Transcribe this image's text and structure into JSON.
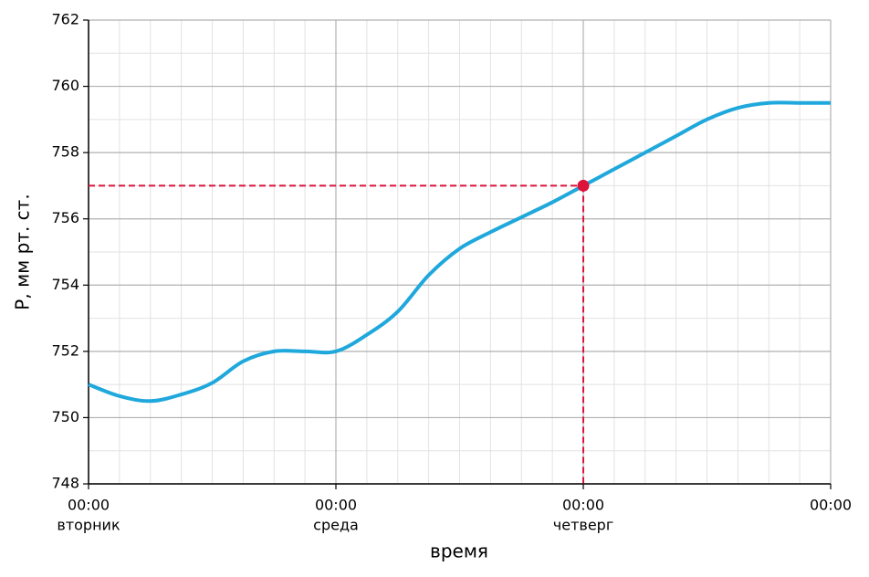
{
  "chart_data": {
    "type": "line",
    "xlabel": "время",
    "ylabel": "P, мм рт. ст.",
    "x": [
      0,
      3,
      6,
      9,
      12,
      15,
      18,
      21,
      24,
      27,
      30,
      33,
      36,
      39,
      42,
      45,
      48,
      51,
      54,
      57,
      60,
      63,
      66,
      69,
      72
    ],
    "series": [
      {
        "color": "#1fa8dc",
        "values": [
          751.0,
          750.65,
          750.5,
          750.7,
          751.05,
          751.7,
          752.0,
          752.0,
          752.0,
          752.5,
          753.2,
          754.3,
          755.1,
          755.6,
          756.05,
          756.5,
          757.0,
          757.5,
          758.0,
          758.5,
          759.0,
          759.35,
          759.5,
          759.5,
          759.5
        ]
      }
    ],
    "xlim": [
      0,
      72
    ],
    "ylim": [
      748,
      762
    ],
    "xticks": [
      {
        "value": 0,
        "label": "00:00"
      },
      {
        "value": 24,
        "label": "00:00"
      },
      {
        "value": 48,
        "label": "00:00"
      },
      {
        "value": 72,
        "label": "00:00"
      }
    ],
    "day_labels": [
      "вторник",
      "среда",
      "четверг",
      null
    ],
    "yticks": [
      748,
      750,
      752,
      754,
      756,
      758,
      760,
      762
    ],
    "minor_xticks": [
      3,
      6,
      9,
      12,
      15,
      18,
      21,
      27,
      30,
      33,
      36,
      39,
      42,
      45,
      51,
      54,
      57,
      60,
      63,
      66,
      69
    ],
    "minor_yticks": [
      749,
      751,
      753,
      755,
      757,
      759,
      761
    ],
    "grid": true,
    "marker": {
      "x": 48,
      "y": 757,
      "color": "#dc143c"
    }
  }
}
